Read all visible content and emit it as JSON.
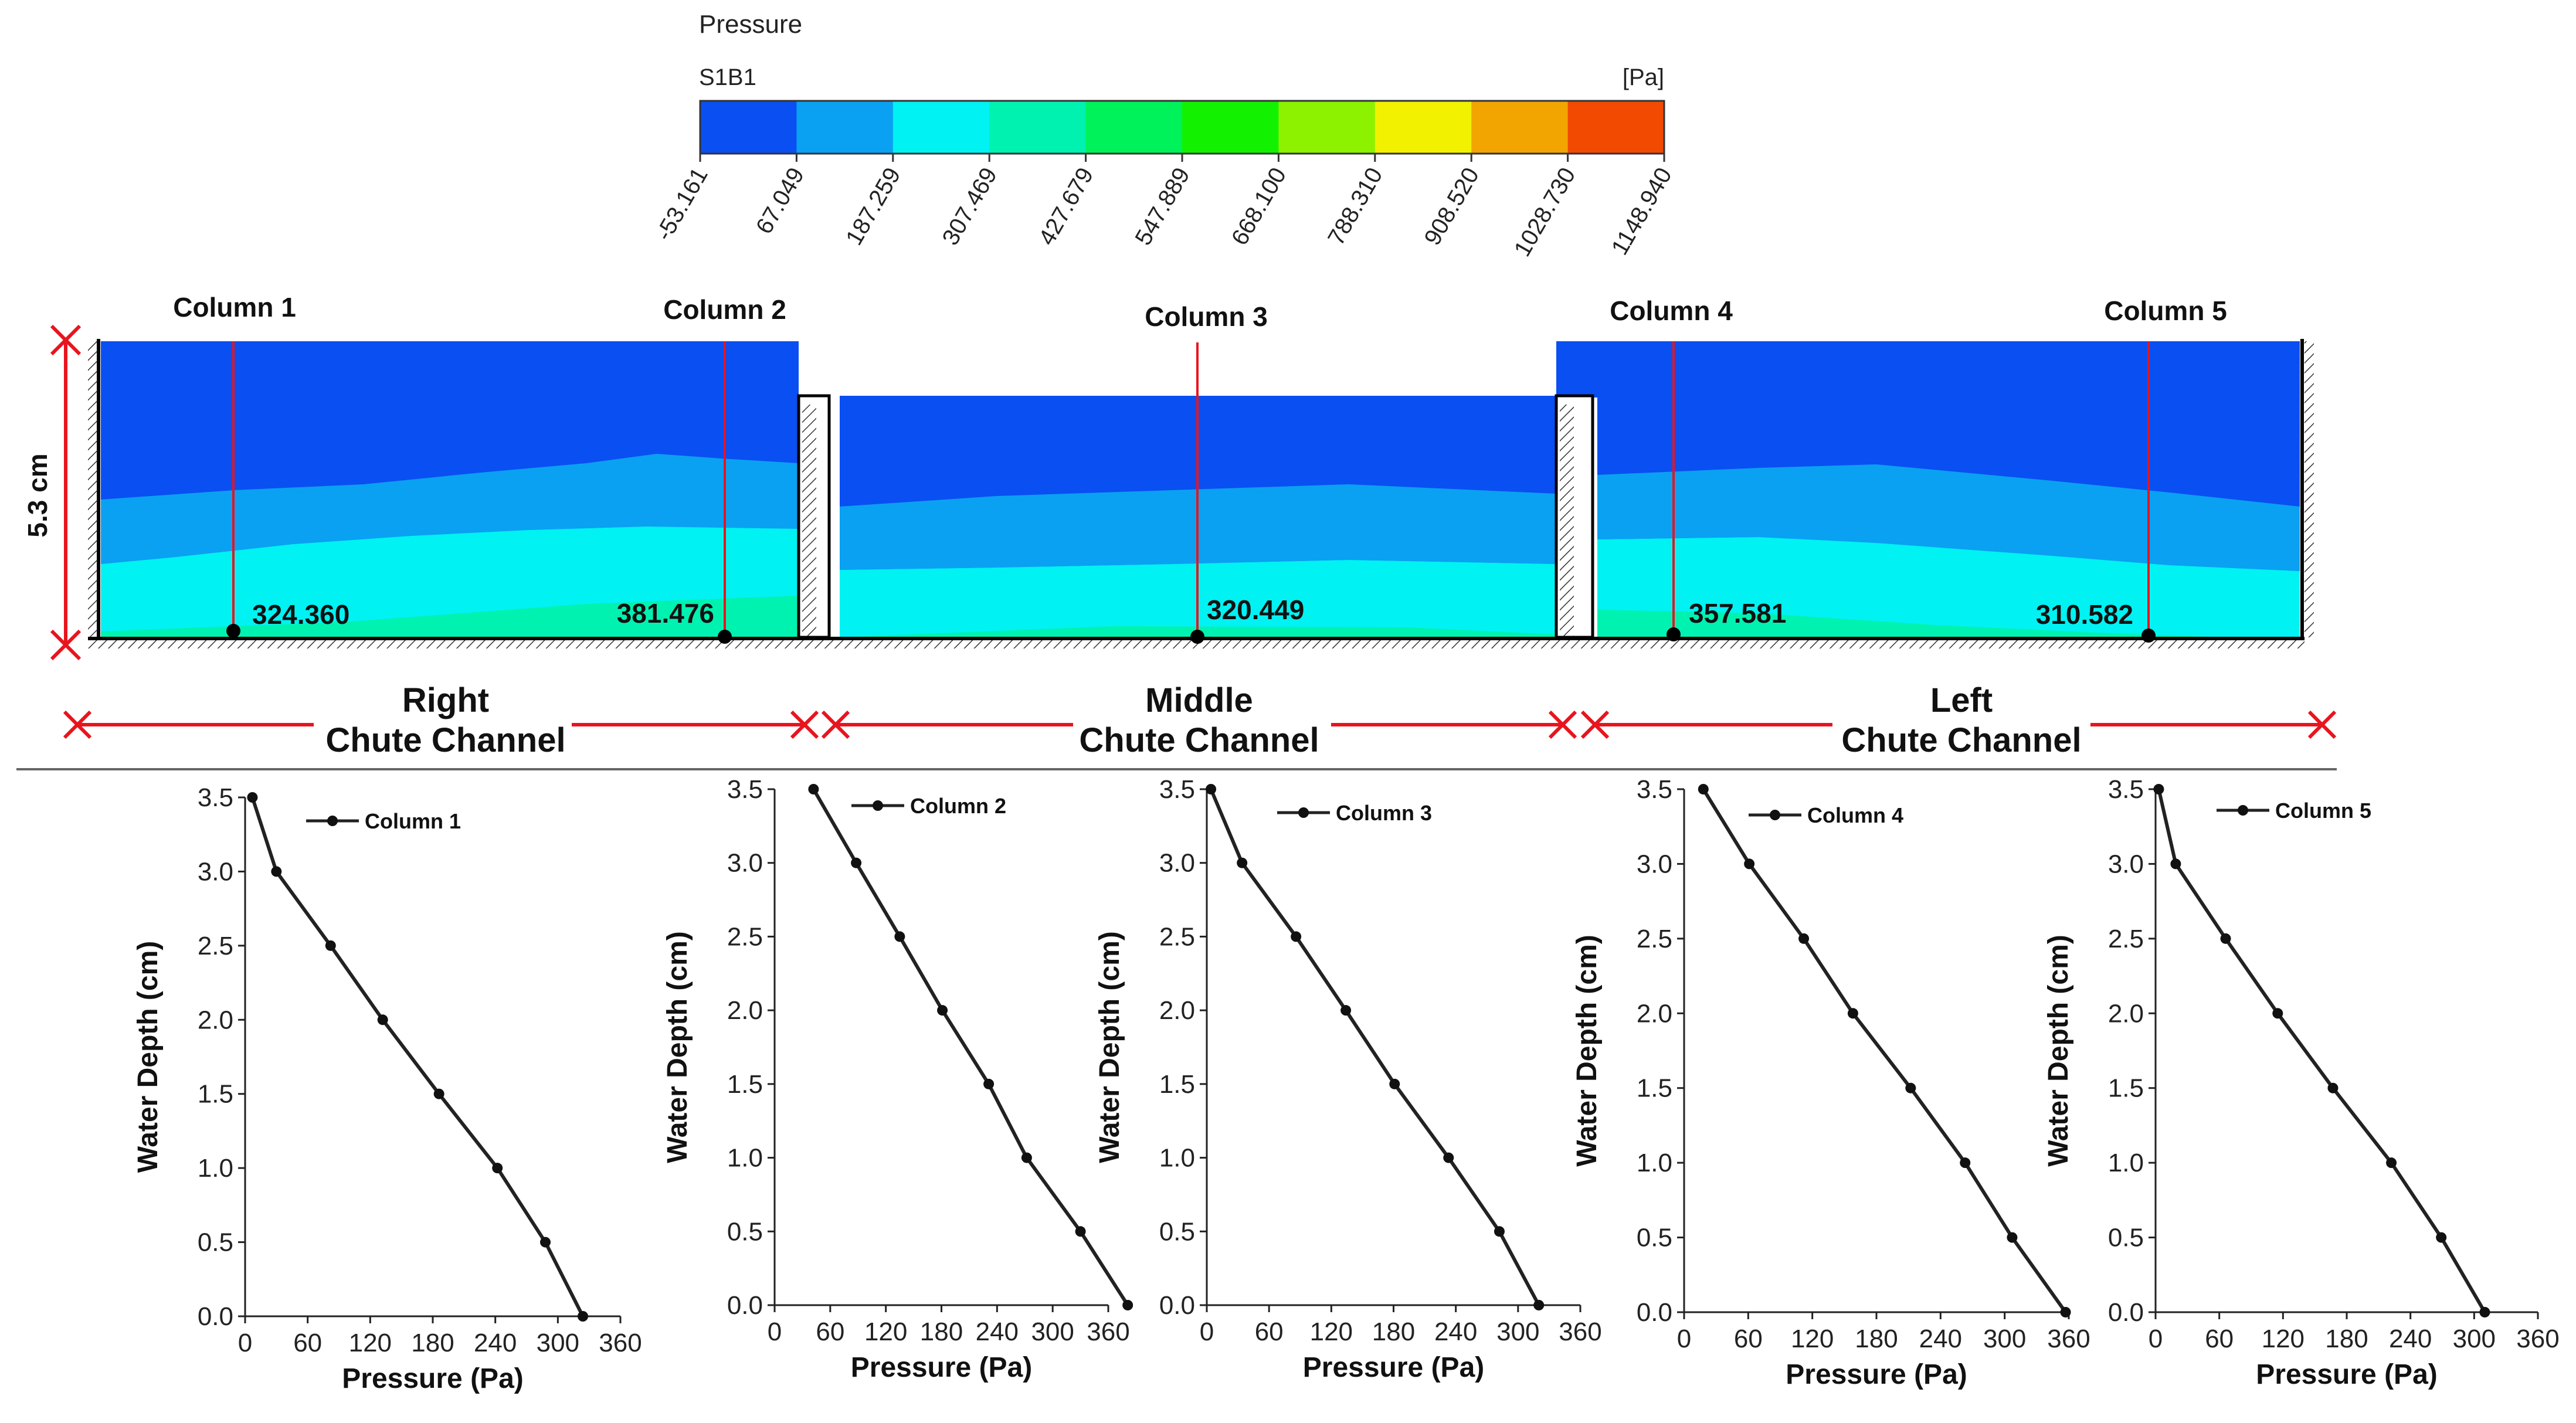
{
  "legend": {
    "title": "Pressure",
    "case": "S1B1",
    "unit": "[Pa]",
    "ticks": [
      "-53.161",
      "67.049",
      "187.259",
      "307.469",
      "427.679",
      "547.889",
      "668.100",
      "788.310",
      "908.520",
      "1028.730",
      "1148.940"
    ],
    "colors": [
      "#0a4ff2",
      "#0aa1f2",
      "#00f2f2",
      "#00f2b1",
      "#00f25a",
      "#12f200",
      "#8df200",
      "#f2f200",
      "#f2a500",
      "#f24a00"
    ]
  },
  "contour": {
    "height_label": "5.3 cm",
    "columns": [
      {
        "label": "Column 1",
        "value": "324.360"
      },
      {
        "label": "Column 2",
        "value": "381.476"
      },
      {
        "label": "Column 3",
        "value": "320.449"
      },
      {
        "label": "Column 4",
        "value": "357.581"
      },
      {
        "label": "Column 5",
        "value": "310.582"
      }
    ],
    "channels": [
      {
        "line1": "Right",
        "line2": "Chute Channel"
      },
      {
        "line1": "Middle",
        "line2": "Chute Channel"
      },
      {
        "line1": "Left",
        "line2": "Chute Channel"
      }
    ],
    "colors": {
      "dimension_red": "#e8141e",
      "marker_black": "#000000"
    }
  },
  "chart_data": [
    {
      "type": "line",
      "legend": "Column 1",
      "xlabel": "Pressure (Pa)",
      "ylabel": "Water Depth (cm)",
      "xlim": [
        0,
        360
      ],
      "ylim": [
        0,
        3.5
      ],
      "xticks": [
        "0",
        "60",
        "120",
        "180",
        "240",
        "300",
        "360"
      ],
      "yticks": [
        "0.0",
        "0.5",
        "1.0",
        "1.5",
        "2.0",
        "2.5",
        "3.0",
        "3.5"
      ],
      "x": [
        7,
        30,
        82,
        132,
        186,
        242,
        288,
        324
      ],
      "y": [
        3.5,
        3.0,
        2.5,
        2.0,
        1.5,
        1.0,
        0.5,
        0.0
      ]
    },
    {
      "type": "line",
      "legend": "Column 2",
      "xlabel": "Pressure (Pa)",
      "ylabel": "Water Depth (cm)",
      "xlim": [
        0,
        360
      ],
      "ylim": [
        0,
        3.5
      ],
      "xticks": [
        "0",
        "60",
        "120",
        "180",
        "240",
        "300",
        "360"
      ],
      "yticks": [
        "0.0",
        "0.5",
        "1.0",
        "1.5",
        "2.0",
        "2.5",
        "3.0",
        "3.5"
      ],
      "x": [
        42,
        88,
        135,
        181,
        231,
        272,
        330,
        381
      ],
      "y": [
        3.5,
        3.0,
        2.5,
        2.0,
        1.5,
        1.0,
        0.5,
        0.0
      ]
    },
    {
      "type": "line",
      "legend": "Column 3",
      "xlabel": "Pressure (Pa)",
      "ylabel": "Water Depth (cm)",
      "xlim": [
        0,
        360
      ],
      "ylim": [
        0,
        3.5
      ],
      "xticks": [
        "0",
        "60",
        "120",
        "180",
        "240",
        "300",
        "360"
      ],
      "yticks": [
        "0.0",
        "0.5",
        "1.0",
        "1.5",
        "2.0",
        "2.5",
        "3.0",
        "3.5"
      ],
      "x": [
        4,
        34,
        86,
        134,
        181,
        233,
        282,
        320
      ],
      "y": [
        3.5,
        3.0,
        2.5,
        2.0,
        1.5,
        1.0,
        0.5,
        0.0
      ]
    },
    {
      "type": "line",
      "legend": "Column 4",
      "xlabel": "Pressure (Pa)",
      "ylabel": "Water Depth (cm)",
      "xlim": [
        0,
        360
      ],
      "ylim": [
        0,
        3.5
      ],
      "xticks": [
        "0",
        "60",
        "120",
        "180",
        "240",
        "300",
        "360"
      ],
      "yticks": [
        "0.0",
        "0.5",
        "1.0",
        "1.5",
        "2.0",
        "2.5",
        "3.0",
        "3.5"
      ],
      "x": [
        18,
        61,
        112,
        158,
        212,
        263,
        307,
        357
      ],
      "y": [
        3.5,
        3.0,
        2.5,
        2.0,
        1.5,
        1.0,
        0.5,
        0.0
      ]
    },
    {
      "type": "line",
      "legend": "Column 5",
      "xlabel": "Pressure (Pa)",
      "ylabel": "Water Depth (cm)",
      "xlim": [
        0,
        360
      ],
      "ylim": [
        0,
        3.5
      ],
      "xticks": [
        "0",
        "60",
        "120",
        "180",
        "240",
        "300",
        "360"
      ],
      "yticks": [
        "0.0",
        "0.5",
        "1.0",
        "1.5",
        "2.0",
        "2.5",
        "3.0",
        "3.5"
      ],
      "x": [
        3,
        19,
        66,
        115,
        167,
        222,
        269,
        310
      ],
      "y": [
        3.5,
        3.0,
        2.5,
        2.0,
        1.5,
        1.0,
        0.5,
        0.0
      ]
    }
  ]
}
